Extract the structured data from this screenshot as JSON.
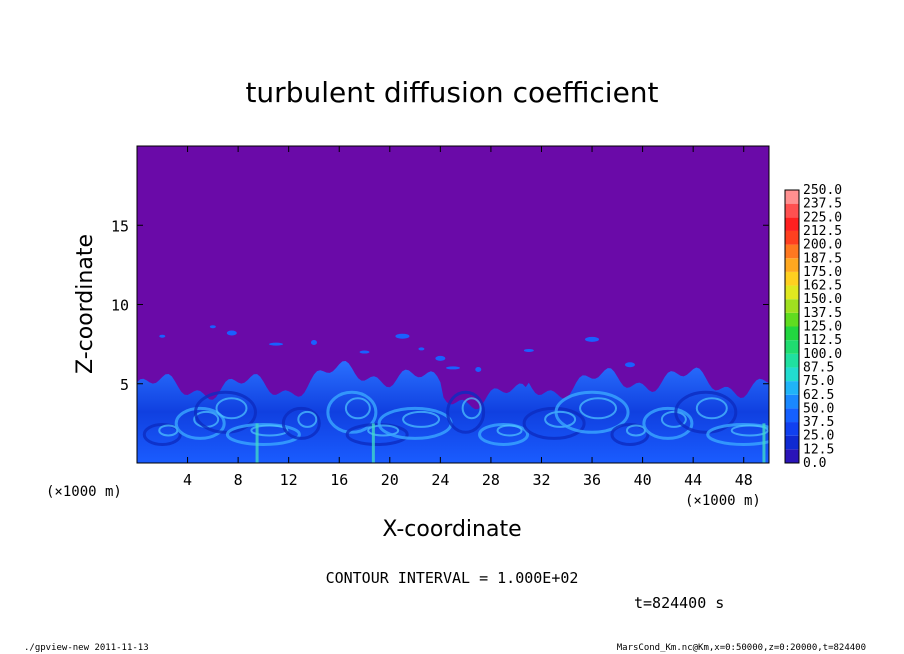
{
  "chart_data": {
    "type": "heatmap",
    "title": "turbulent diffusion coefficient",
    "xlabel": "X-coordinate",
    "ylabel": "Z-coordinate",
    "x_unit": "(×1000 m)",
    "y_unit": "(×1000 m)",
    "xlim": [
      0,
      50
    ],
    "ylim": [
      0,
      20
    ],
    "x_ticks": [
      "4",
      "8",
      "12",
      "16",
      "20",
      "24",
      "28",
      "32",
      "36",
      "40",
      "44",
      "48"
    ],
    "y_ticks": [
      "5",
      "10",
      "15"
    ],
    "colorbar_levels": [
      "0.0",
      "12.5",
      "25.0",
      "37.5",
      "50.0",
      "62.5",
      "75.0",
      "87.5",
      "100.0",
      "112.5",
      "125.0",
      "137.5",
      "150.0",
      "162.5",
      "175.0",
      "187.5",
      "200.0",
      "212.5",
      "225.0",
      "237.5",
      "250.0"
    ],
    "colorbar_colors": [
      "#6a0aa8",
      "#2a14b8",
      "#0f2ad2",
      "#1040f0",
      "#1560ff",
      "#1a88ff",
      "#20b4f8",
      "#22dcd0",
      "#20e0a0",
      "#20dc70",
      "#22d640",
      "#60dc20",
      "#a0e020",
      "#e0e820",
      "#ffd020",
      "#ffa820",
      "#ff7820",
      "#ff4020",
      "#ff2020",
      "#ff5050",
      "#ff9090"
    ],
    "background_value": "0.0",
    "turbulent_layer_top_km_approx": 5,
    "contour_interval": "CONTOUR INTERVAL = 1.000E+02",
    "time_label": "t=824400 s"
  },
  "footer": {
    "left": "./gpview-new  2011-11-13",
    "right": "MarsCond_Km.nc@Km,x=0:50000,z=0:20000,t=824400"
  },
  "colors": {
    "background_fill": "#6a0aa8",
    "turbulence_fill": "#1050f0"
  }
}
